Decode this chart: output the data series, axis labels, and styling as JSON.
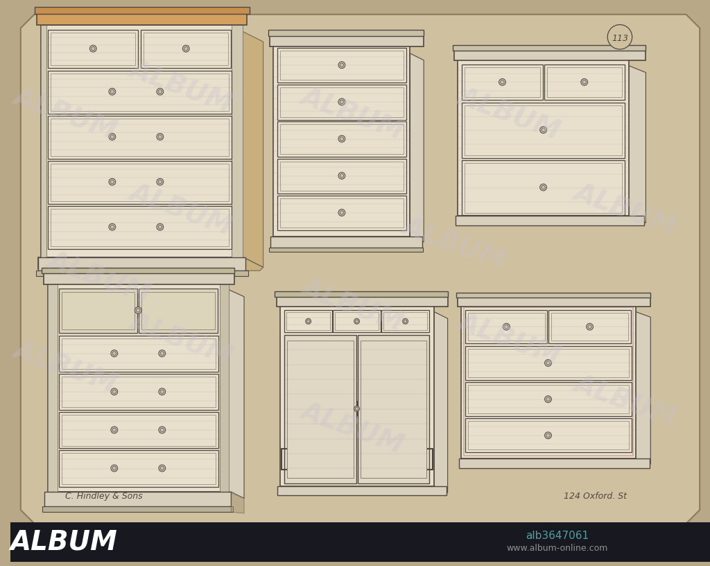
{
  "bg_color": "#b8a888",
  "paper_color": "#cfc0a0",
  "line_color": "#888070",
  "dark_line": "#504840",
  "wood_fill": "#e8e0cc",
  "wood_fill_dark": "#d8d0bc",
  "shadow_color": "#a89878",
  "accent_orange": "#c8905a",
  "accent_pink": "#c09090",
  "bottom_bar_color": "#181820",
  "bottom_bar_text": "#50a0a0",
  "watermark_color": "#c8c0d0",
  "watermark_alpha": 0.3,
  "left_sig": "C. Hindley & Sons",
  "right_sig": "124 Oxford. St",
  "page_num": "113",
  "album_text": "ALBUM",
  "album_url": "www.album-online.com",
  "album_id": "alb3647061"
}
